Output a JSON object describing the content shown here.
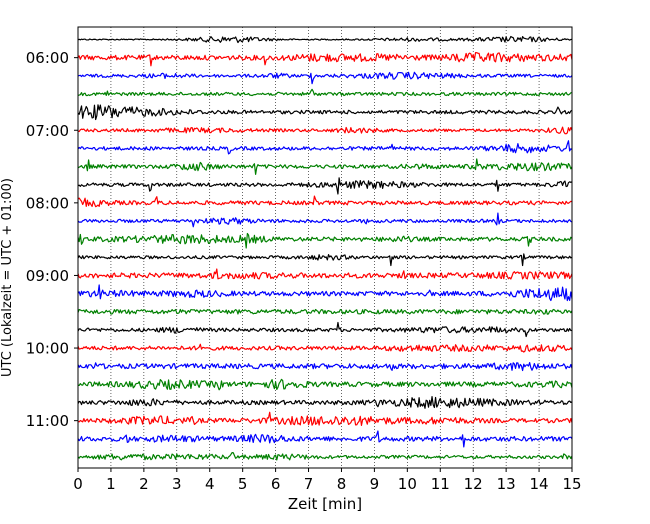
{
  "chart_data": {
    "type": "line",
    "title": "",
    "xlabel": "Zeit  [min]",
    "ylabel": "UTC (Lokalzeit = UTC + 01:00)",
    "xlim": [
      0,
      15
    ],
    "x_ticks": [
      "0",
      "1",
      "2",
      "3",
      "4",
      "5",
      "6",
      "7",
      "8",
      "9",
      "10",
      "11",
      "12",
      "13",
      "14",
      "15"
    ],
    "y_tick_labels": [
      "06:00",
      "07:00",
      "08:00",
      "09:00",
      "10:00",
      "11:00"
    ],
    "grid": "vertical-dotted",
    "trace_interval_minutes": 15,
    "colors": [
      "#000000",
      "#ff0000",
      "#0000ff",
      "#008000"
    ],
    "traces": [
      {
        "start": "05:45",
        "color": "#000000",
        "events": []
      },
      {
        "start": "06:00",
        "color": "#ff0000",
        "events": [
          2.2,
          5.7,
          11.55
        ]
      },
      {
        "start": "06:15",
        "color": "#0000ff",
        "events": [
          7.1
        ]
      },
      {
        "start": "06:30",
        "color": "#008000",
        "events": [
          0.9,
          7.1
        ]
      },
      {
        "start": "06:45",
        "color": "#000000",
        "events": [
          14.6
        ]
      },
      {
        "start": "07:00",
        "color": "#ff0000",
        "events": [
          8.2
        ]
      },
      {
        "start": "07:15",
        "color": "#0000ff",
        "events": [
          4.6,
          9.5,
          14.9
        ]
      },
      {
        "start": "07:30",
        "color": "#008000",
        "events": [
          0.3,
          5.4,
          12.1
        ]
      },
      {
        "start": "07:45",
        "color": "#000000",
        "events": [
          2.2,
          7.9,
          12.75
        ]
      },
      {
        "start": "08:00",
        "color": "#ff0000",
        "events": [
          2.4,
          7.2
        ]
      },
      {
        "start": "08:15",
        "color": "#0000ff",
        "events": [
          3.5,
          8.7,
          12.75
        ]
      },
      {
        "start": "08:30",
        "color": "#008000",
        "events": [
          0.1,
          5.1,
          13.7
        ]
      },
      {
        "start": "08:45",
        "color": "#000000",
        "events": [
          9.5,
          13.5
        ]
      },
      {
        "start": "09:00",
        "color": "#ff0000",
        "events": [
          4.2,
          9.9
        ]
      },
      {
        "start": "09:15",
        "color": "#0000ff",
        "events": [
          0.65,
          10.65
        ]
      },
      {
        "start": "09:30",
        "color": "#008000",
        "events": [
          3.0,
          14.2
        ]
      },
      {
        "start": "09:45",
        "color": "#000000",
        "events": [
          7.9,
          13.6
        ]
      },
      {
        "start": "10:00",
        "color": "#ff0000",
        "events": [
          3.7,
          13.5
        ]
      },
      {
        "start": "10:15",
        "color": "#0000ff",
        "events": [
          0.55,
          9.5
        ]
      },
      {
        "start": "10:30",
        "color": "#008000",
        "events": [
          4.3
        ]
      },
      {
        "start": "10:45",
        "color": "#000000",
        "events": [
          9.1
        ]
      },
      {
        "start": "11:00",
        "color": "#ff0000",
        "events": [
          3.5,
          4.5,
          5.8
        ]
      },
      {
        "start": "11:15",
        "color": "#0000ff",
        "events": [
          1.5,
          9.1,
          11.7
        ]
      },
      {
        "start": "11:30",
        "color": "#008000",
        "events": [
          4.7,
          14.8
        ]
      }
    ]
  }
}
